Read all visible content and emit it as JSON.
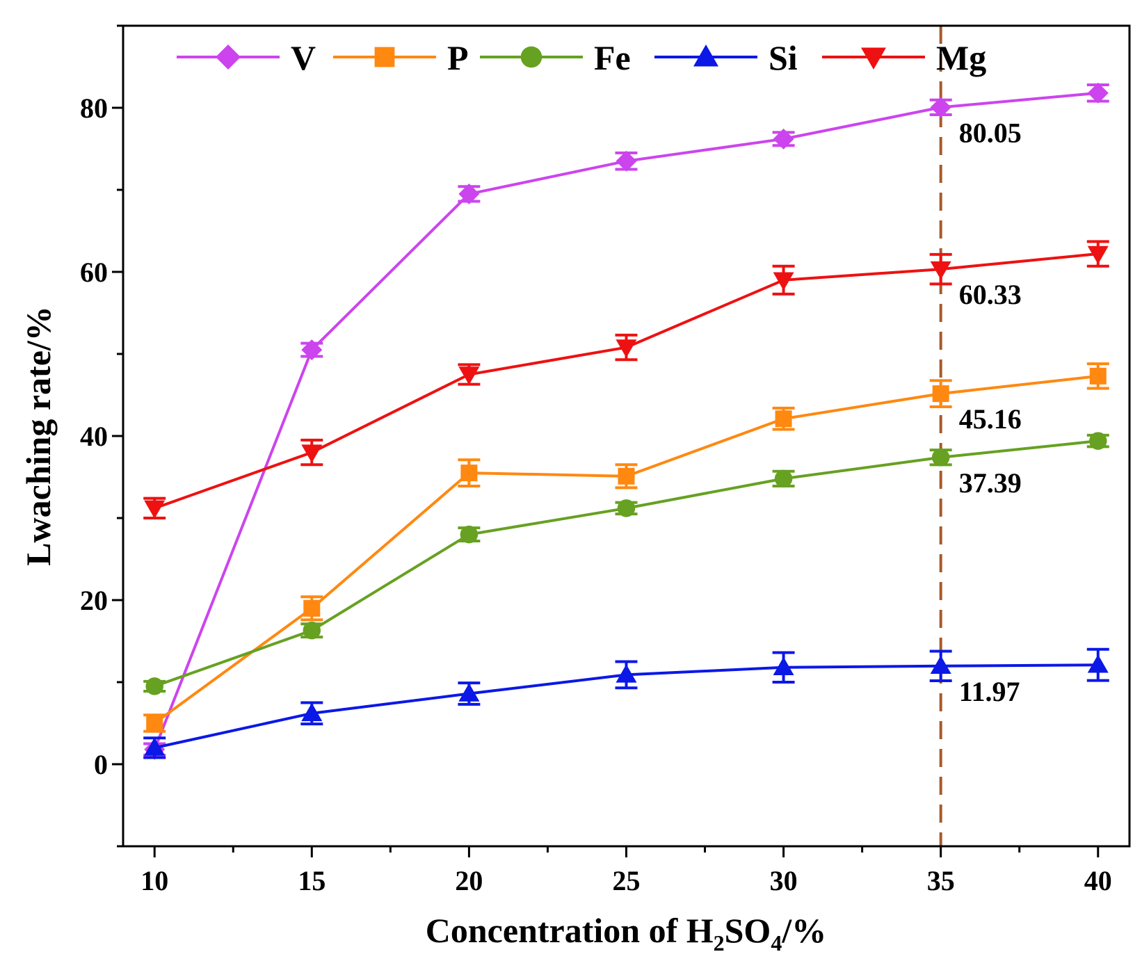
{
  "chart_data": {
    "type": "line",
    "xlabel_prefix": "Concentration of H",
    "xlabel_sub1": "2",
    "xlabel_mid": "SO",
    "xlabel_sub2": "4",
    "xlabel_suffix": "/%",
    "ylabel": "Lwaching rate/%",
    "xlim": [
      9,
      41
    ],
    "ylim": [
      -10,
      90
    ],
    "x_ticks": [
      10,
      15,
      20,
      25,
      30,
      35,
      40
    ],
    "y_ticks": [
      0,
      20,
      40,
      60,
      80
    ],
    "x": [
      10,
      15,
      20,
      25,
      30,
      35,
      40
    ],
    "series": [
      {
        "name": "V",
        "color": "#cc44ee",
        "marker": "diamond",
        "values": [
          1.8,
          50.5,
          69.5,
          73.5,
          76.2,
          80.05,
          81.8
        ],
        "errors": [
          0.7,
          0.8,
          0.9,
          1.0,
          0.8,
          0.9,
          1.0
        ]
      },
      {
        "name": "P",
        "color": "#ff8811",
        "marker": "square",
        "values": [
          5.0,
          19.0,
          35.5,
          35.1,
          42.1,
          45.16,
          47.3
        ],
        "errors": [
          1.0,
          1.4,
          1.6,
          1.4,
          1.3,
          1.6,
          1.5
        ]
      },
      {
        "name": "Fe",
        "color": "#66a121",
        "marker": "circle",
        "values": [
          9.5,
          16.3,
          28.0,
          31.2,
          34.8,
          37.39,
          39.4
        ],
        "errors": [
          0.6,
          0.8,
          0.8,
          0.7,
          0.9,
          0.9,
          0.7
        ]
      },
      {
        "name": "Si",
        "color": "#0b18e6",
        "marker": "triangle",
        "values": [
          2.0,
          6.2,
          8.6,
          10.9,
          11.8,
          11.97,
          12.1
        ],
        "errors": [
          1.2,
          1.3,
          1.3,
          1.6,
          1.8,
          1.8,
          1.9
        ]
      },
      {
        "name": "Mg",
        "color": "#ee1111",
        "marker": "triangle-down",
        "values": [
          31.2,
          38.0,
          47.5,
          50.8,
          59.0,
          60.33,
          62.2
        ],
        "errors": [
          1.2,
          1.5,
          1.2,
          1.5,
          1.7,
          1.8,
          1.5
        ]
      }
    ],
    "vline": {
      "x": 35,
      "color": "#a55a2a",
      "style": "dashed"
    },
    "annotations": [
      {
        "text": "80.05",
        "x": 35,
        "y": 80.05
      },
      {
        "text": "60.33",
        "x": 35,
        "y": 60.33
      },
      {
        "text": "45.16",
        "x": 35,
        "y": 45.16
      },
      {
        "text": "37.39",
        "x": 35,
        "y": 37.39
      },
      {
        "text": "11.97",
        "x": 35,
        "y": 11.97
      }
    ],
    "legend_position": "top"
  }
}
